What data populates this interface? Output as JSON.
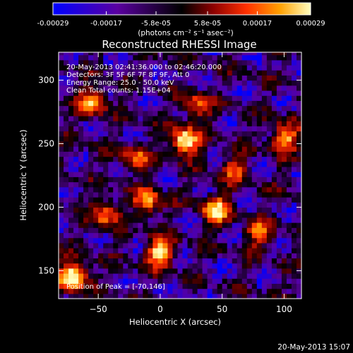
{
  "chart_data": {
    "type": "heatmap",
    "title": "Reconstructed RHESSI Image",
    "colorbar": {
      "ticks": [
        -0.00029,
        -0.00017,
        -5.8e-05,
        5.8e-05,
        0.00017,
        0.00029
      ],
      "tick_labels": [
        "-0.00029",
        "-0.00017",
        "-5.8e-05",
        "5.8e-05",
        "0.00017",
        "0.00029"
      ],
      "unit_label": "(photons cm⁻² s⁻¹ asec⁻²)",
      "range": [
        -0.00029,
        0.00029
      ],
      "colors": [
        "#0000ff",
        "#5a00a0",
        "#000000",
        "#8b0000",
        "#ff3000",
        "#ffa000",
        "#ffffc0"
      ]
    },
    "xlabel": "Heliocentric X (arcsec)",
    "ylabel": "Heliocentric Y (arcsec)",
    "xlim": [
      -82,
      114
    ],
    "ylim": [
      128,
      322
    ],
    "xticks": [
      -50,
      0,
      50,
      100
    ],
    "yticks": [
      150,
      200,
      250,
      300
    ],
    "annotations": [
      "20-May-2013 02:41:36.000 to 02:46:20.000",
      "Detectors: 3F 5F 6F 7F 8F 9F, Att 0",
      "Energy Range: 25.0 - 50.0 keV",
      "Clean    Total counts: 1.15E+04"
    ],
    "peak_label": "Position of Peak = [-70,146]",
    "peak": [
      -70,
      146
    ],
    "bright_sources": [
      {
        "x": -70,
        "y": 146,
        "v": 1.0
      },
      {
        "x": 20,
        "y": 252,
        "v": 0.95
      },
      {
        "x": 0,
        "y": 165,
        "v": 0.85
      },
      {
        "x": 45,
        "y": 198,
        "v": 0.8
      },
      {
        "x": 100,
        "y": 255,
        "v": 0.75
      },
      {
        "x": -55,
        "y": 283,
        "v": 0.7
      },
      {
        "x": -10,
        "y": 205,
        "v": 0.65
      },
      {
        "x": -45,
        "y": 195,
        "v": 0.6
      },
      {
        "x": 80,
        "y": 180,
        "v": 0.55
      },
      {
        "x": 30,
        "y": 280,
        "v": 0.5
      },
      {
        "x": -20,
        "y": 240,
        "v": 0.5
      },
      {
        "x": 60,
        "y": 230,
        "v": 0.45
      }
    ]
  },
  "footer": {
    "timestamp": "20-May-2013 15:07"
  }
}
